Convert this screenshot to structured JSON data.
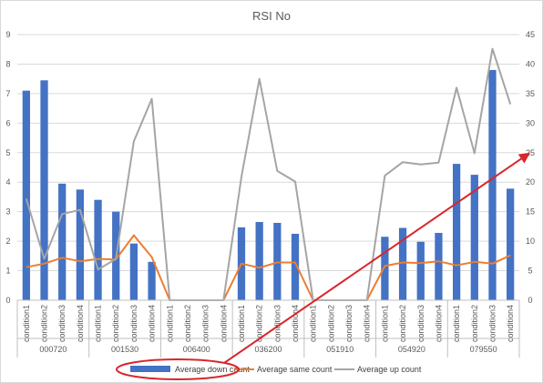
{
  "chart_data": {
    "type": "bar",
    "title": "RSI No",
    "groups": [
      "000720",
      "001530",
      "006400",
      "036200",
      "051910",
      "054920",
      "079550"
    ],
    "conditions": [
      "condition1",
      "condition2",
      "condition3",
      "condition4"
    ],
    "y_left": {
      "min": 0,
      "max": 9,
      "ticks": [
        "0",
        "1",
        "2",
        "3",
        "4",
        "5",
        "6",
        "7",
        "8",
        "9"
      ]
    },
    "y_right": {
      "min": 0,
      "max": 45,
      "ticks": [
        "0",
        "5",
        "10",
        "15",
        "20",
        "25",
        "30",
        "35",
        "40",
        "45"
      ]
    },
    "series": [
      {
        "name": "Average down count",
        "type": "bar",
        "axis": "left",
        "color": "#4472c4",
        "values": [
          7.1,
          7.45,
          3.95,
          3.75,
          3.4,
          3.0,
          1.92,
          1.3,
          0,
          0,
          0,
          0,
          2.47,
          2.65,
          2.62,
          2.25,
          0,
          0,
          0,
          0,
          2.15,
          2.45,
          1.98,
          2.28,
          4.62,
          4.25,
          7.8,
          3.78
        ]
      },
      {
        "name": "Average same count",
        "type": "line",
        "axis": "right",
        "color": "#ed7d31",
        "values": [
          5.6,
          6.2,
          7.2,
          6.6,
          7.0,
          6.9,
          11.0,
          7.3,
          0,
          0,
          0,
          0,
          6.2,
          5.5,
          6.4,
          6.4,
          0,
          0,
          0,
          0,
          5.8,
          6.4,
          6.3,
          6.6,
          5.9,
          6.5,
          6.2,
          7.6
        ]
      },
      {
        "name": "Average up count",
        "type": "line",
        "axis": "right",
        "color": "#a5a5a5",
        "values": [
          17.2,
          7.0,
          14.6,
          15.3,
          5.2,
          7.0,
          26.9,
          34.1,
          0,
          0,
          0,
          0,
          20.9,
          37.5,
          21.9,
          20.1,
          0,
          0,
          0,
          0,
          21.1,
          23.4,
          23.0,
          23.3,
          36.0,
          24.9,
          42.6,
          33.2
        ]
      }
    ],
    "legend_position": "bottom",
    "gridlines": true,
    "annotations": [
      {
        "kind": "ellipse",
        "color": "#d9262b",
        "around": "legend-item-down"
      },
      {
        "kind": "arrow",
        "color": "#d9262b",
        "from": "legend-item-down",
        "to": "right-axis-25"
      }
    ]
  }
}
